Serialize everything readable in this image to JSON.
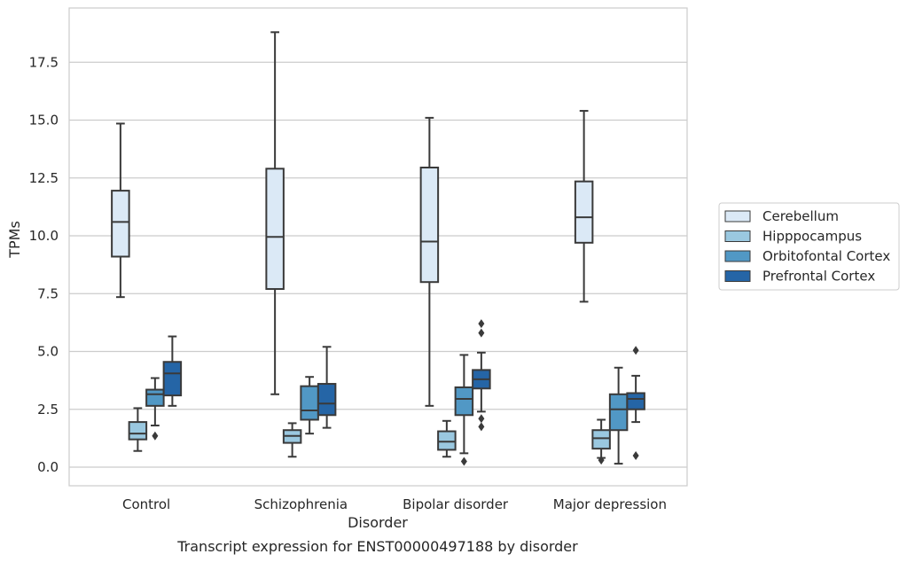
{
  "chart_data": {
    "type": "box",
    "title": "Transcript expression for ENST00000497188 by disorder",
    "xlabel": "Disorder",
    "ylabel": "TPMs",
    "categories": [
      "Control",
      "Schizophrenia",
      "Bipolar disorder",
      "Major depression"
    ],
    "yticks": [
      "0.0",
      "2.5",
      "5.0",
      "7.5",
      "10.0",
      "12.5",
      "15.0",
      "17.5"
    ],
    "ylim": [
      -0.8,
      19.8
    ],
    "grid": true,
    "legend_position": "right",
    "series": [
      {
        "name": "Cerebellum",
        "color": "#dbe9f6",
        "boxes": [
          {
            "whisker_low": 7.35,
            "q1": 9.1,
            "median": 10.6,
            "q3": 11.95,
            "whisker_high": 14.85,
            "outliers": []
          },
          {
            "whisker_low": 3.15,
            "q1": 7.7,
            "median": 9.95,
            "q3": 12.9,
            "whisker_high": 18.8,
            "outliers": []
          },
          {
            "whisker_low": 2.65,
            "q1": 8.0,
            "median": 9.75,
            "q3": 12.95,
            "whisker_high": 15.1,
            "outliers": []
          },
          {
            "whisker_low": 7.15,
            "q1": 9.7,
            "median": 10.8,
            "q3": 12.35,
            "whisker_high": 15.4,
            "outliers": []
          }
        ]
      },
      {
        "name": "Hipppocampus",
        "color": "#9ac8e0",
        "boxes": [
          {
            "whisker_low": 0.7,
            "q1": 1.2,
            "median": 1.45,
            "q3": 1.95,
            "whisker_high": 2.55,
            "outliers": []
          },
          {
            "whisker_low": 0.45,
            "q1": 1.05,
            "median": 1.35,
            "q3": 1.6,
            "whisker_high": 1.9,
            "outliers": []
          },
          {
            "whisker_low": 0.45,
            "q1": 0.75,
            "median": 1.1,
            "q3": 1.55,
            "whisker_high": 2.0,
            "outliers": []
          },
          {
            "whisker_low": 0.4,
            "q1": 0.8,
            "median": 1.25,
            "q3": 1.6,
            "whisker_high": 2.05,
            "outliers": [
              0.3
            ]
          }
        ]
      },
      {
        "name": "Orbitofontal Cortex",
        "color": "#5198c5",
        "boxes": [
          {
            "whisker_low": 1.8,
            "q1": 2.65,
            "median": 3.15,
            "q3": 3.35,
            "whisker_high": 3.85,
            "outliers": [
              1.35
            ]
          },
          {
            "whisker_low": 1.45,
            "q1": 2.05,
            "median": 2.45,
            "q3": 3.5,
            "whisker_high": 3.9,
            "outliers": []
          },
          {
            "whisker_low": 0.6,
            "q1": 2.25,
            "median": 2.95,
            "q3": 3.45,
            "whisker_high": 4.85,
            "outliers": [
              0.25
            ]
          },
          {
            "whisker_low": 0.15,
            "q1": 1.6,
            "median": 2.5,
            "q3": 3.15,
            "whisker_high": 4.3,
            "outliers": []
          }
        ]
      },
      {
        "name": "Prefrontal Cortex",
        "color": "#2565a6",
        "boxes": [
          {
            "whisker_low": 2.65,
            "q1": 3.1,
            "median": 4.05,
            "q3": 4.55,
            "whisker_high": 5.65,
            "outliers": []
          },
          {
            "whisker_low": 1.7,
            "q1": 2.25,
            "median": 2.75,
            "q3": 3.6,
            "whisker_high": 5.2,
            "outliers": []
          },
          {
            "whisker_low": 2.4,
            "q1": 3.4,
            "median": 3.8,
            "q3": 4.2,
            "whisker_high": 4.95,
            "outliers": [
              2.1,
              1.75,
              5.8,
              6.2
            ]
          },
          {
            "whisker_low": 1.95,
            "q1": 2.5,
            "median": 2.95,
            "q3": 3.2,
            "whisker_high": 3.95,
            "outliers": [
              5.05,
              0.5
            ]
          }
        ]
      }
    ]
  }
}
